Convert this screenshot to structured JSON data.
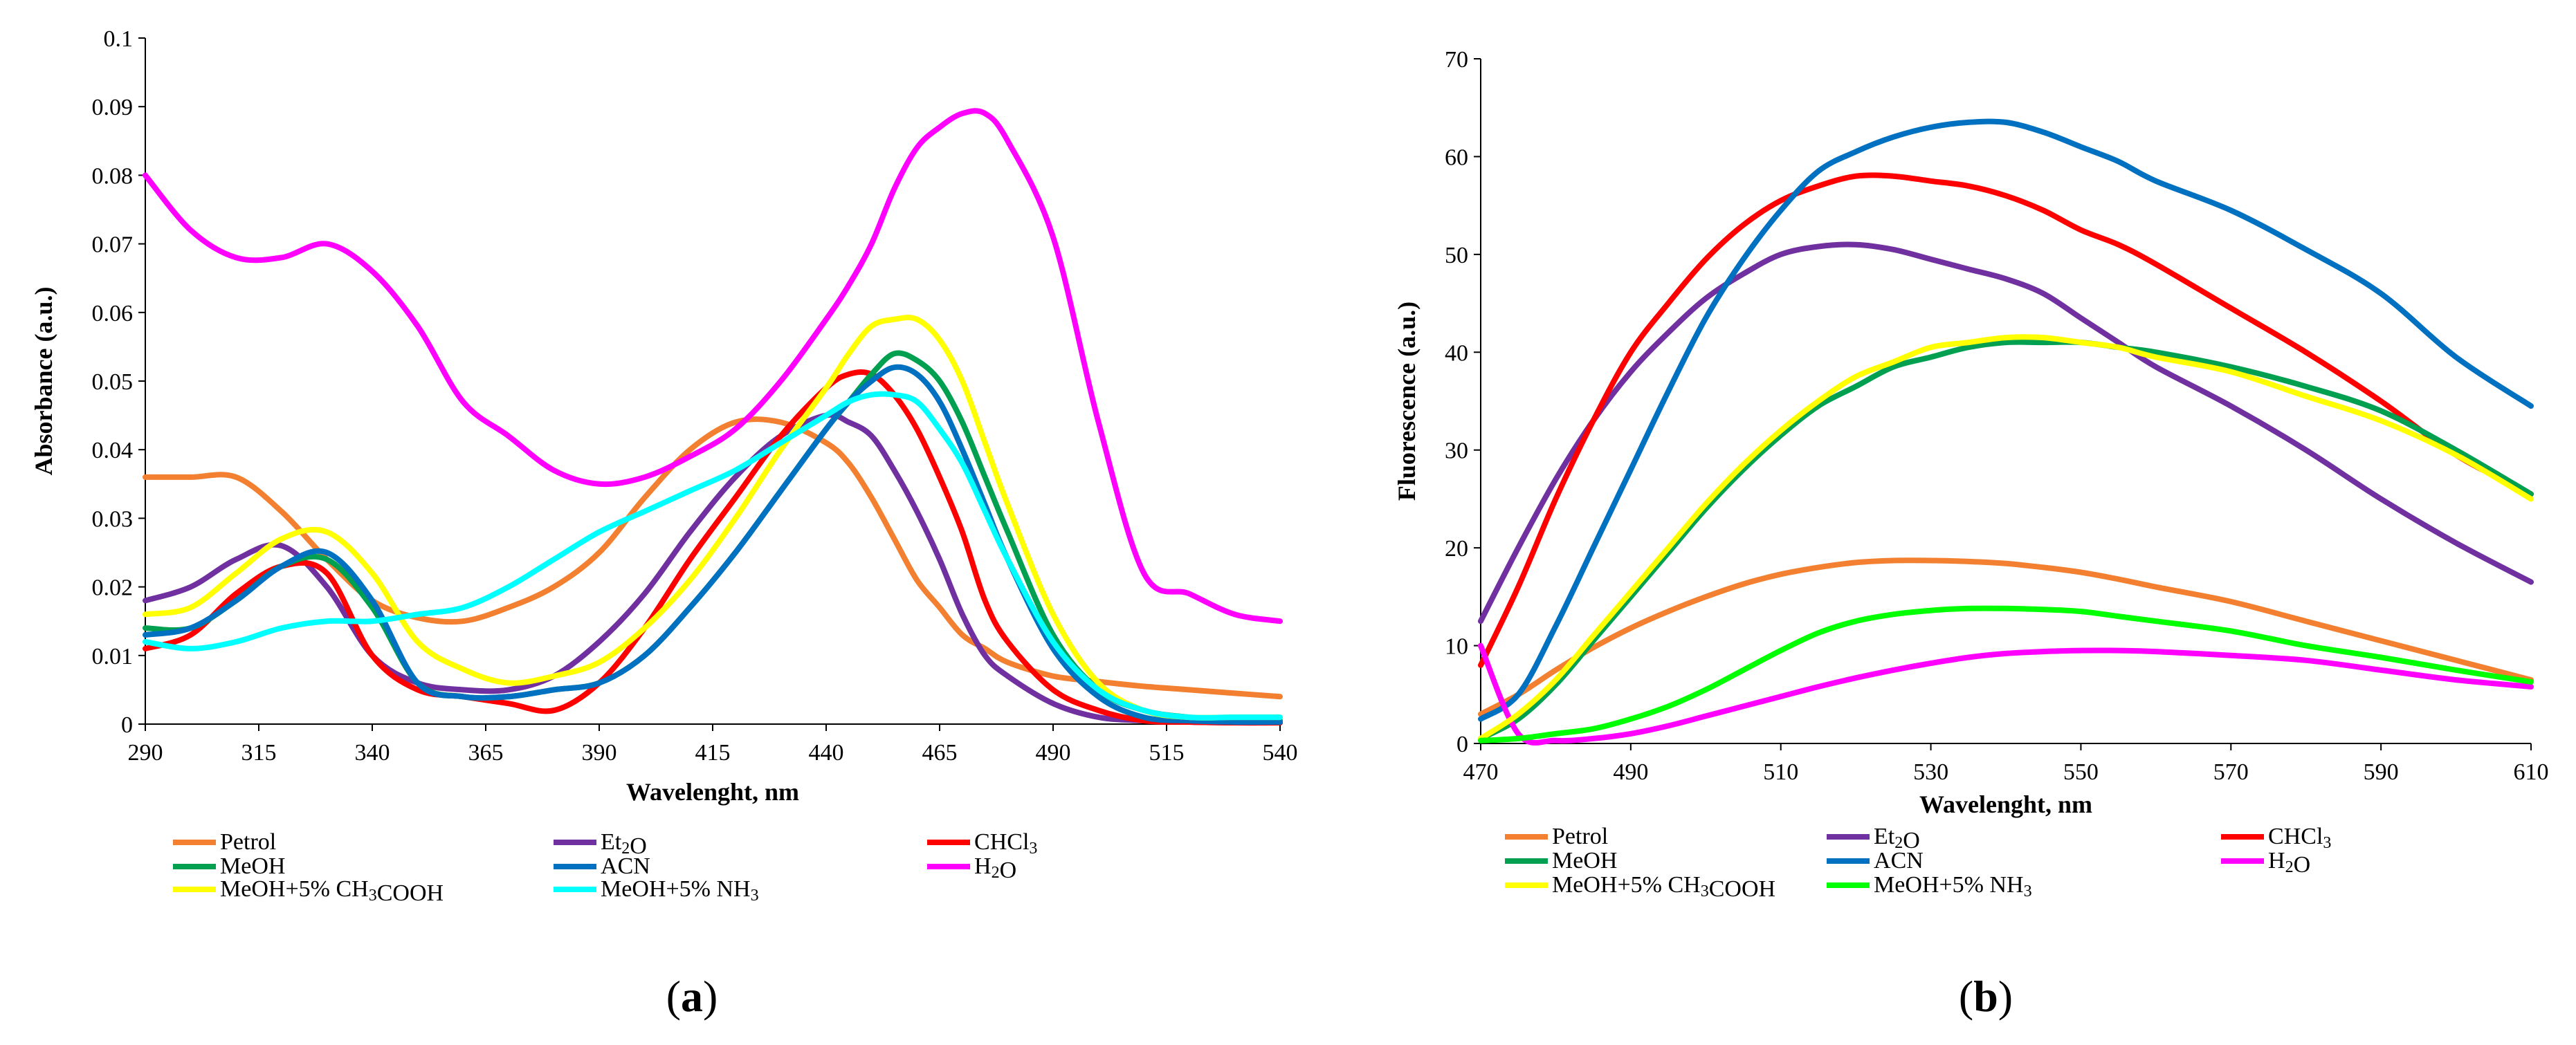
{
  "colors": {
    "Petrol": "#f28030",
    "Et2O": "#7030a0",
    "CHCl3": "#ff0000",
    "MeOH": "#00a050",
    "ACN": "#0070c0",
    "H2O": "#ff00ff",
    "MeOH_AcOH": "#ffff00",
    "MeOH_NH3_a": "#00ffff",
    "MeOH_NH3_b": "#00ff00"
  },
  "chart_data": [
    {
      "type": "line",
      "panel_label": "(a)",
      "xlabel": "Wavelenght, nm",
      "ylabel": "Absorbance (a.u.)",
      "xlim": [
        290,
        540
      ],
      "ylim": [
        0,
        0.1
      ],
      "xticks": [
        "290",
        "315",
        "340",
        "365",
        "390",
        "415",
        "440",
        "465",
        "490",
        "515",
        "540"
      ],
      "yticks": [
        "0",
        "0.01",
        "0.02",
        "0.03",
        "0.04",
        "0.05",
        "0.06",
        "0.07",
        "0.08",
        "0.09",
        "0.1"
      ],
      "x": [
        290,
        300,
        310,
        320,
        330,
        340,
        350,
        360,
        370,
        380,
        390,
        400,
        410,
        420,
        430,
        440,
        445,
        450,
        455,
        460,
        465,
        470,
        475,
        480,
        490,
        500,
        510,
        520,
        530,
        540
      ],
      "series": [
        {
          "name": "Petrol",
          "label": "Petrol",
          "color": "Petrol",
          "values": [
            0.036,
            0.036,
            0.036,
            0.031,
            0.024,
            0.018,
            0.0155,
            0.015,
            0.017,
            0.02,
            0.025,
            0.033,
            0.04,
            0.044,
            0.044,
            0.041,
            0.038,
            0.033,
            0.027,
            0.021,
            0.017,
            0.013,
            0.011,
            0.009,
            0.007,
            0.0062,
            0.0055,
            0.005,
            0.0045,
            0.004
          ]
        },
        {
          "name": "Et2O",
          "label": "Et2O",
          "color": "Et2O",
          "values": [
            0.018,
            0.02,
            0.024,
            0.026,
            0.02,
            0.01,
            0.006,
            0.005,
            0.005,
            0.007,
            0.012,
            0.019,
            0.028,
            0.036,
            0.042,
            0.045,
            0.044,
            0.042,
            0.037,
            0.031,
            0.024,
            0.016,
            0.01,
            0.007,
            0.003,
            0.001,
            0.0005,
            0.0003,
            0.0002,
            0.0002
          ]
        },
        {
          "name": "CHCl3",
          "label": "CHCl3",
          "color": "CHCl3",
          "values": [
            0.011,
            0.013,
            0.019,
            0.023,
            0.022,
            0.01,
            0.005,
            0.004,
            0.003,
            0.002,
            0.006,
            0.014,
            0.024,
            0.033,
            0.042,
            0.049,
            0.051,
            0.051,
            0.048,
            0.043,
            0.036,
            0.028,
            0.018,
            0.012,
            0.005,
            0.002,
            0.0005,
            0.0003,
            0.0002,
            0.0002
          ]
        },
        {
          "name": "MeOH",
          "label": "MeOH",
          "color": "MeOH",
          "values": [
            0.014,
            0.014,
            0.018,
            0.023,
            0.024,
            0.017,
            0.006,
            0.004,
            0.004,
            0.005,
            0.006,
            0.01,
            0.017,
            0.025,
            0.034,
            0.043,
            0.047,
            0.051,
            0.054,
            0.053,
            0.05,
            0.044,
            0.036,
            0.028,
            0.013,
            0.005,
            0.002,
            0.001,
            0.0005,
            0.0005
          ]
        },
        {
          "name": "ACN",
          "label": "ACN",
          "color": "ACN",
          "values": [
            0.013,
            0.014,
            0.018,
            0.023,
            0.025,
            0.018,
            0.006,
            0.004,
            0.004,
            0.005,
            0.006,
            0.01,
            0.017,
            0.025,
            0.034,
            0.043,
            0.047,
            0.05,
            0.052,
            0.051,
            0.047,
            0.04,
            0.032,
            0.024,
            0.011,
            0.004,
            0.001,
            0.0005,
            0.0003,
            0.0003
          ]
        },
        {
          "name": "H2O",
          "label": "H2O",
          "color": "H2O",
          "values": [
            0.08,
            0.072,
            0.068,
            0.068,
            0.07,
            0.066,
            0.058,
            0.047,
            0.042,
            0.037,
            0.035,
            0.036,
            0.039,
            0.043,
            0.05,
            0.059,
            0.064,
            0.07,
            0.078,
            0.084,
            0.087,
            0.089,
            0.089,
            0.085,
            0.071,
            0.044,
            0.022,
            0.019,
            0.016,
            0.015
          ]
        },
        {
          "name": "MeOH+5% CH3COOH",
          "label": "MeOH+5% CH3COOH",
          "color": "MeOH_AcOH",
          "values": [
            0.016,
            0.017,
            0.022,
            0.027,
            0.028,
            0.022,
            0.012,
            0.008,
            0.006,
            0.007,
            0.009,
            0.014,
            0.021,
            0.03,
            0.04,
            0.049,
            0.054,
            0.058,
            0.059,
            0.059,
            0.056,
            0.05,
            0.041,
            0.032,
            0.016,
            0.006,
            0.002,
            0.001,
            0.001,
            0.001
          ]
        },
        {
          "name": "MeOH+5% NH3",
          "label": "MeOH+5% NH3",
          "color": "MeOH_NH3_a",
          "values": [
            0.012,
            0.011,
            0.012,
            0.014,
            0.015,
            0.015,
            0.016,
            0.017,
            0.02,
            0.024,
            0.028,
            0.031,
            0.034,
            0.037,
            0.041,
            0.045,
            0.047,
            0.048,
            0.048,
            0.047,
            0.043,
            0.038,
            0.031,
            0.024,
            0.012,
            0.005,
            0.002,
            0.001,
            0.001,
            0.001
          ]
        }
      ],
      "legend": "bottom"
    },
    {
      "type": "line",
      "panel_label": "(b)",
      "xlabel": "Wavelenght, nm",
      "ylabel": "Fluorescence (a.u.)",
      "xlim": [
        470,
        610
      ],
      "ylim": [
        0,
        70
      ],
      "xticks": [
        "470",
        "490",
        "510",
        "530",
        "550",
        "570",
        "590",
        "610"
      ],
      "yticks": [
        "0",
        "10",
        "20",
        "30",
        "40",
        "50",
        "60",
        "70"
      ],
      "x": [
        470,
        475,
        480,
        485,
        490,
        495,
        500,
        505,
        510,
        515,
        520,
        525,
        530,
        535,
        540,
        545,
        550,
        555,
        560,
        570,
        580,
        590,
        600,
        610
      ],
      "series": [
        {
          "name": "Petrol",
          "label": "Petrol",
          "color": "Petrol",
          "values": [
            3,
            5,
            7.5,
            9.8,
            11.8,
            13.5,
            15,
            16.3,
            17.3,
            18,
            18.5,
            18.7,
            18.7,
            18.6,
            18.4,
            18,
            17.5,
            16.8,
            16,
            14.5,
            12.5,
            10.5,
            8.5,
            6.5
          ]
        },
        {
          "name": "Et2O",
          "label": "Et2O",
          "color": "Et2O",
          "values": [
            12.5,
            20,
            27,
            33,
            38,
            42,
            45.5,
            48,
            50,
            50.8,
            51,
            50.5,
            49.5,
            48.5,
            47.5,
            46,
            43.5,
            41,
            38.5,
            34.5,
            30,
            25,
            20.5,
            16.5
          ]
        },
        {
          "name": "CHCl3",
          "label": "CHCl3",
          "color": "CHCl3",
          "values": [
            8,
            16,
            25,
            33,
            40,
            45,
            49.5,
            53,
            55.5,
            57,
            58,
            58,
            57.5,
            57,
            56,
            54.5,
            52.5,
            51,
            49,
            44.5,
            40,
            35,
            29.5,
            25.5
          ]
        },
        {
          "name": "MeOH",
          "label": "MeOH",
          "color": "MeOH",
          "values": [
            0.5,
            2.5,
            6,
            10.5,
            15,
            19.5,
            24,
            28,
            31.5,
            34.5,
            36.5,
            38.5,
            39.5,
            40.5,
            41,
            41,
            41,
            40.5,
            40,
            38.5,
            36.5,
            34,
            30,
            25.5
          ]
        },
        {
          "name": "ACN",
          "label": "ACN",
          "color": "ACN",
          "values": [
            2.5,
            5,
            12,
            20,
            28,
            36,
            43.5,
            49.5,
            54.5,
            58.5,
            60.5,
            62,
            63,
            63.5,
            63.5,
            62.5,
            61,
            59.5,
            57.5,
            54.5,
            50.5,
            46,
            39.5,
            34.5
          ]
        },
        {
          "name": "H2O",
          "label": "H2O",
          "color": "H2O",
          "values": [
            10,
            1,
            0.3,
            0.5,
            1,
            1.8,
            2.8,
            3.8,
            4.8,
            5.8,
            6.7,
            7.5,
            8.2,
            8.8,
            9.2,
            9.4,
            9.5,
            9.5,
            9.4,
            9,
            8.5,
            7.5,
            6.5,
            5.8
          ]
        },
        {
          "name": "MeOH+5% CH3COOH",
          "label": "MeOH+5% CH3COOH",
          "color": "MeOH_AcOH",
          "values": [
            0.5,
            3,
            6.5,
            11,
            15.5,
            20,
            24.5,
            28.5,
            32,
            35,
            37.5,
            39,
            40.5,
            41,
            41.5,
            41.5,
            41,
            40.5,
            39.5,
            38,
            35.5,
            33,
            29.5,
            25
          ]
        },
        {
          "name": "MeOH+5% NH3",
          "label": "MeOH+5% NH3",
          "color": "MeOH_NH3_b",
          "values": [
            0.3,
            0.5,
            1,
            1.5,
            2.5,
            3.8,
            5.5,
            7.5,
            9.5,
            11.3,
            12.5,
            13.2,
            13.6,
            13.8,
            13.8,
            13.7,
            13.5,
            13,
            12.5,
            11.5,
            10,
            8.8,
            7.5,
            6.3
          ]
        }
      ],
      "legend": "bottom"
    }
  ]
}
